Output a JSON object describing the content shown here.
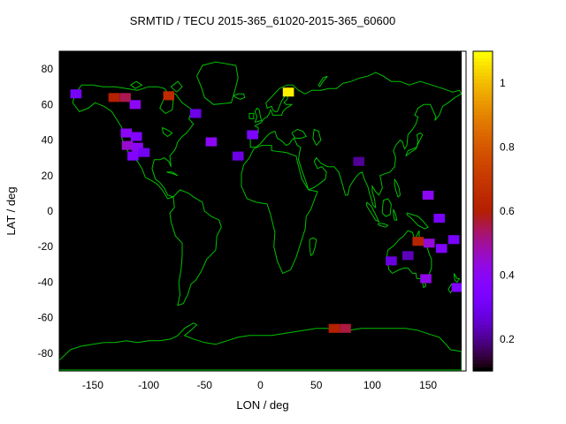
{
  "title": "SRMTID / TECU 2015-365_61020-2015-365_60600",
  "chart_data": {
    "type": "heatmap",
    "title": "SRMTID / TECU 2015-365_61020-2015-365_60600",
    "xlabel": "LON / deg",
    "ylabel": "LAT / deg",
    "xlim": [
      -180,
      180
    ],
    "ylim": [
      -90,
      90
    ],
    "x_ticks": [
      -150,
      -100,
      -50,
      0,
      50,
      100,
      150
    ],
    "y_ticks": [
      -80,
      -60,
      -40,
      -20,
      0,
      20,
      40,
      60,
      80
    ],
    "grid": false,
    "legend_position": "none",
    "background": "#000000",
    "map_outline_color": "#00c000",
    "colorbar": {
      "min": 0.1,
      "max": 1.1,
      "ticks": [
        0.2,
        0.4,
        0.6,
        0.8,
        1
      ],
      "palette": "gnuplot-black-purple-red-orange-yellow",
      "position": "right"
    },
    "cell_size_deg": {
      "lon": 10,
      "lat": 5
    },
    "points": [
      {
        "lon": -165,
        "lat": 66,
        "value": 0.32
      },
      {
        "lon": -131,
        "lat": 64,
        "value": 0.6
      },
      {
        "lon": -121,
        "lat": 64,
        "value": 0.55
      },
      {
        "lon": -112,
        "lat": 60,
        "value": 0.4
      },
      {
        "lon": -82,
        "lat": 65,
        "value": 0.65
      },
      {
        "lon": -58,
        "lat": 55,
        "value": 0.28
      },
      {
        "lon": -120,
        "lat": 44,
        "value": 0.4
      },
      {
        "lon": -111,
        "lat": 42,
        "value": 0.36
      },
      {
        "lon": -119,
        "lat": 37,
        "value": 0.45
      },
      {
        "lon": -110,
        "lat": 36,
        "value": 0.4
      },
      {
        "lon": -114,
        "lat": 31,
        "value": 0.36
      },
      {
        "lon": -104,
        "lat": 33,
        "value": 0.3
      },
      {
        "lon": -44,
        "lat": 39,
        "value": 0.4
      },
      {
        "lon": -20,
        "lat": 31,
        "value": 0.28
      },
      {
        "lon": -7,
        "lat": 43,
        "value": 0.34
      },
      {
        "lon": 25,
        "lat": 67,
        "value": 1.08
      },
      {
        "lon": 88,
        "lat": 28,
        "value": 0.2
      },
      {
        "lon": 150,
        "lat": 9,
        "value": 0.4
      },
      {
        "lon": 160,
        "lat": -4,
        "value": 0.32
      },
      {
        "lon": 141,
        "lat": -17,
        "value": 0.62
      },
      {
        "lon": 151,
        "lat": -18,
        "value": 0.44
      },
      {
        "lon": 162,
        "lat": -21,
        "value": 0.36
      },
      {
        "lon": 173,
        "lat": -16,
        "value": 0.32
      },
      {
        "lon": 117,
        "lat": -28,
        "value": 0.27
      },
      {
        "lon": 132,
        "lat": -25,
        "value": 0.23
      },
      {
        "lon": 148,
        "lat": -38,
        "value": 0.42
      },
      {
        "lon": 176,
        "lat": -43,
        "value": 0.34
      },
      {
        "lon": 66,
        "lat": -66,
        "value": 0.6
      },
      {
        "lon": 76,
        "lat": -66,
        "value": 0.56
      }
    ]
  }
}
